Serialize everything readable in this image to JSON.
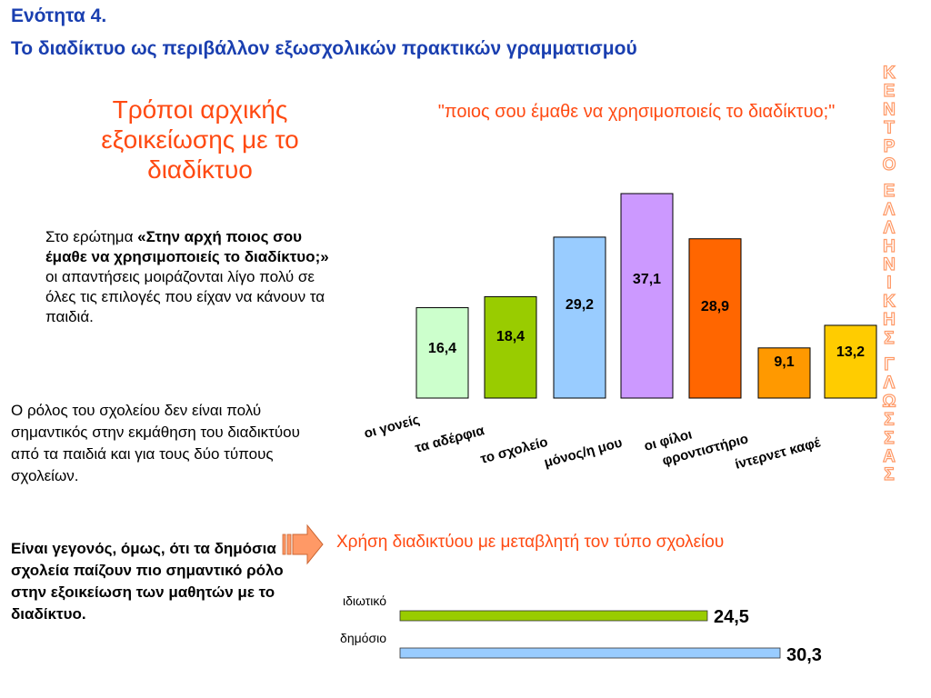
{
  "header": {
    "unit": "Ενότητα 4.",
    "title": "Το διαδίκτυο ως περιβάλλον εξωσχολικών πρακτικών γραμματισμού"
  },
  "heading_lines": [
    "Τρόποι αρχικής",
    "εξοικείωσης με το",
    "διαδίκτυο"
  ],
  "para1": {
    "prefix": "Στο ερώτημα ",
    "bold": "«Στην αρχή ποιος σου έμαθε να χρησιμοποιείς το διαδίκτυο;»",
    "suffix": " οι απαντήσεις μοιράζονται λίγο πολύ σε όλες τις επιλογές που είχαν να κάνουν τα παιδιά."
  },
  "para2": "Ο ρόλος του σχολείου δεν είναι πολύ σημαντικός στην εκμάθηση του διαδικτύου από τα παιδιά και για τους δύο τύπους σχολείων.",
  "para3": "Είναι γεγονός, όμως, ότι τα δημόσια σχολεία παίζουν πιο σημαντικό ρόλο στην εξοικείωση των μαθητών με το διαδίκτυο.",
  "vertical_text": "ΚΕΝΤΡΟ ΕΛΛΗΝΙΚΗΣ ΓΛΩΣΣΑΣ",
  "icons": {
    "arrow": "right-arrow-icon"
  },
  "chart_data": [
    {
      "type": "bar",
      "title": "\"ποιος σου έμαθε να χρησιμοποιείς το διαδίκτυο;\"",
      "categories": [
        "οι γονείς",
        "τα αδέρφια",
        "το σχολείο",
        "μόνος/η μου",
        "οι φίλοι",
        "φροντιστήριο",
        "ίντερνετ καφέ"
      ],
      "values": [
        16.4,
        18.4,
        29.2,
        37.1,
        28.9,
        9.1,
        13.2
      ],
      "value_labels": [
        "16,4",
        "18,4",
        "29,2",
        "37,1",
        "28,9",
        "9,1",
        "13,2"
      ],
      "colors": [
        "#ccffcc",
        "#99cc00",
        "#99ccff",
        "#cc99ff",
        "#ff6600",
        "#ff9900",
        "#ffcc00"
      ],
      "ylim": [
        0,
        37.1
      ],
      "grid": false,
      "legend": false
    },
    {
      "type": "bar",
      "orientation": "horizontal",
      "title": "Χρήση διαδικτύου με μεταβλητή τον τύπο σχολείου",
      "categories": [
        "ιδιωτικό",
        "δημόσιο"
      ],
      "values": [
        24.5,
        30.3
      ],
      "value_labels": [
        "24,5",
        "30,3"
      ],
      "colors": [
        "#99cc00",
        "#99ccff"
      ],
      "xlim": [
        0,
        30.3
      ],
      "grid": false,
      "legend": false
    }
  ]
}
